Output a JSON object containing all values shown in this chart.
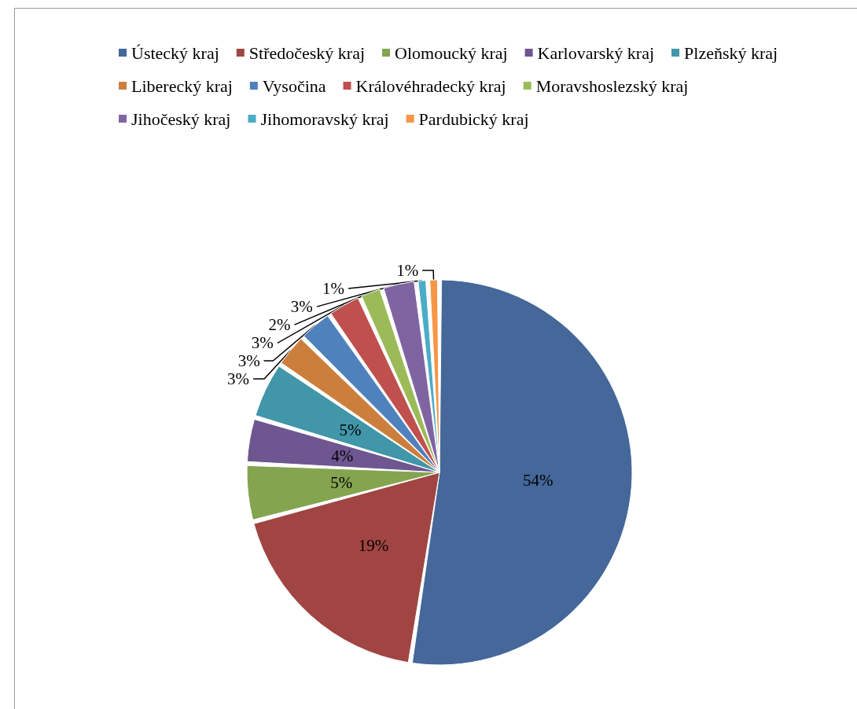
{
  "chart_data": {
    "type": "pie",
    "categories": [
      "Ústecký kraj",
      "Středočeský kraj",
      "Olomoucký kraj",
      "Karlovarský kraj",
      "Plzeňský kraj",
      "Liberecký kraj",
      "Vysočina",
      "Královéhradecký kraj",
      "Moravshoslezský kraj",
      "Jihočeský kraj",
      "Jihomoravský kraj",
      "Pardubický kraj"
    ],
    "values": [
      54,
      19,
      5,
      4,
      5,
      3,
      3,
      3,
      2,
      3,
      1,
      1
    ],
    "value_labels": [
      "54%",
      "19%",
      "5%",
      "4%",
      "5%",
      "3%",
      "3%",
      "3%",
      "2%",
      "3%",
      "1%",
      "1%"
    ],
    "colors": [
      "#45679a",
      "#a04542",
      "#84a450",
      "#6e5690",
      "#4196a9",
      "#cc7f3d",
      "#4f81bd",
      "#c0504d",
      "#9bbb59",
      "#8064a2",
      "#4bacc6",
      "#f79646"
    ],
    "legend": "top"
  }
}
